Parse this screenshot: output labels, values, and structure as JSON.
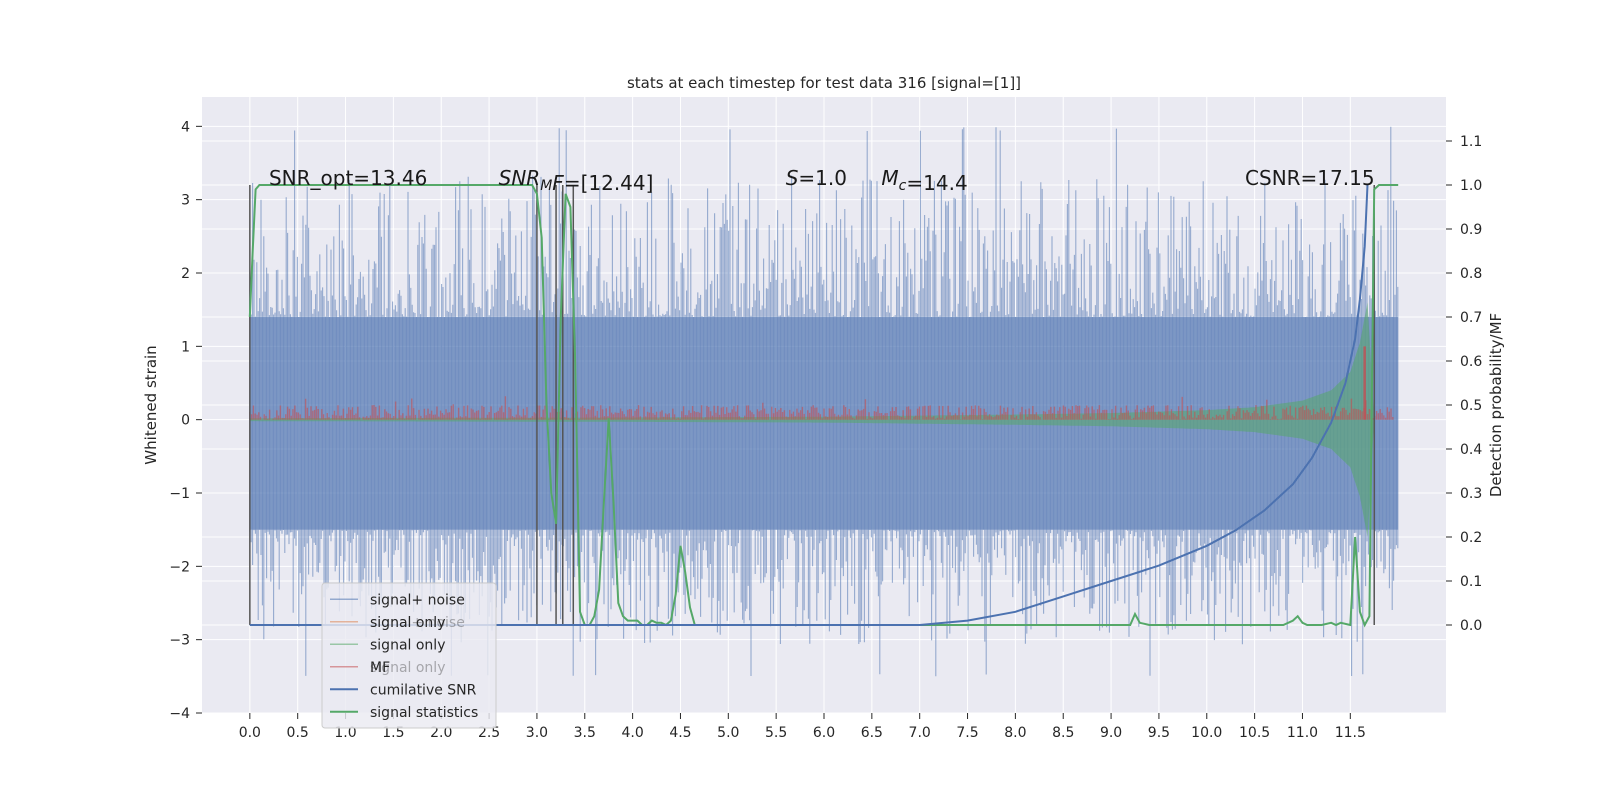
{
  "chart_data": {
    "type": "line",
    "title": "stats at each timestep for test data 316 [signal=[1]]",
    "xlabel": "",
    "ylabel_left": "Whitened strain",
    "ylabel_right": "Detection probability/MF",
    "xlim": [
      -0.5,
      12.5
    ],
    "ylim_left": [
      -4,
      4.4
    ],
    "ylim_right": [
      -0.2,
      1.2
    ],
    "x_ticks": [
      0.0,
      0.5,
      1.0,
      1.5,
      2.0,
      2.5,
      3.0,
      3.5,
      4.0,
      4.5,
      5.0,
      5.5,
      6.0,
      6.5,
      7.0,
      7.5,
      8.0,
      8.5,
      9.0,
      9.5,
      10.0,
      10.5,
      11.0,
      11.5
    ],
    "x_tick_labels": [
      "0.0",
      "0.5",
      "1.0",
      "1.5",
      "2.0",
      "2.5",
      "3.0",
      "3.5",
      "4.0",
      "4.5",
      "5.0",
      "5.5",
      "6.0",
      "6.5",
      "7.0",
      "7.5",
      "8.0",
      "8.5",
      "9.0",
      "9.5",
      "10.0",
      "10.5",
      "11.0",
      "11.5"
    ],
    "y_left_ticks": [
      -4,
      -3,
      -2,
      -1,
      0,
      1,
      2,
      3,
      4
    ],
    "y_left_tick_labels": [
      "−4",
      "−3",
      "−2",
      "−1",
      "0",
      "1",
      "2",
      "3",
      "4"
    ],
    "y_right_ticks": [
      0.0,
      0.1,
      0.2,
      0.3,
      0.4,
      0.5,
      0.6,
      0.7,
      0.8,
      0.9,
      1.0,
      1.1
    ],
    "y_right_tick_labels": [
      "0.0",
      "0.1",
      "0.2",
      "0.3",
      "0.4",
      "0.5",
      "0.6",
      "0.7",
      "0.8",
      "0.9",
      "1.0",
      "1.1"
    ],
    "grid": true,
    "legend_placement": "lower-left",
    "legend": [
      {
        "label": "signal+ noise",
        "color": "#4c72b0",
        "alpha": 0.55
      },
      {
        "label": "signal only",
        "color": "#dd8452",
        "alpha": 0.55
      },
      {
        "label": "signal only",
        "color": "#55a868",
        "alpha": 0.55
      },
      {
        "label": "MF",
        "color": "#c44e52",
        "alpha": 0.55
      },
      {
        "label": "cumilative SNR",
        "color": "#4c72b0",
        "alpha": 1
      },
      {
        "label": "signal statistics",
        "color": "#55a868",
        "alpha": 1
      }
    ],
    "legend_ghost_labels": [
      "signal+ noise",
      "signal only"
    ],
    "annotations": [
      {
        "parts": [
          {
            "t": "SNR_opt=13.46",
            "italic": false
          }
        ],
        "x": 0.2
      },
      {
        "parts": [
          {
            "t": "SNR",
            "italic": true
          },
          {
            "t": "M",
            "italic": true,
            "sub": true
          },
          {
            "t": "F",
            "italic": true
          },
          {
            "t": "=[12.44]",
            "italic": false
          }
        ],
        "x": 2.6
      },
      {
        "parts": [
          {
            "t": "S",
            "italic": true
          },
          {
            "t": "=1.0",
            "italic": false
          }
        ],
        "x": 5.6
      },
      {
        "parts": [
          {
            "t": "M",
            "italic": true
          },
          {
            "t": "c",
            "italic": true,
            "sub": true
          },
          {
            "t": "=14.4",
            "italic": false
          }
        ],
        "x": 6.6
      },
      {
        "parts": [
          {
            "t": "CSNR=17.15",
            "italic": false
          }
        ],
        "x": 10.4
      }
    ],
    "annotation_y_right": 1.0,
    "series": [
      {
        "name": "signal statistics",
        "axis": "right",
        "color": "#55a868",
        "x": [
          0.0,
          0.03,
          0.06,
          0.1,
          0.2,
          0.5,
          1.0,
          2.0,
          2.9,
          2.95,
          3.0,
          3.05,
          3.1,
          3.15,
          3.2,
          3.25,
          3.3,
          3.35,
          3.4,
          3.45,
          3.5,
          3.55,
          3.6,
          3.65,
          3.7,
          3.75,
          3.8,
          3.85,
          3.9,
          3.95,
          4.0,
          4.05,
          4.1,
          4.15,
          4.2,
          4.25,
          4.3,
          4.35,
          4.4,
          4.45,
          4.5,
          4.55,
          4.6,
          4.65,
          4.7,
          4.75,
          5.0,
          6.0,
          7.0,
          8.0,
          9.0,
          9.2,
          9.25,
          9.3,
          9.4,
          10.0,
          10.8,
          10.9,
          10.95,
          11.0,
          11.05,
          11.2,
          11.3,
          11.35,
          11.4,
          11.5,
          11.55,
          11.6,
          11.65,
          11.7,
          11.75,
          11.8,
          11.9,
          12.0
        ],
        "y": [
          0.7,
          0.85,
          0.99,
          1.0,
          1.0,
          1.0,
          1.0,
          1.0,
          1.0,
          1.0,
          0.98,
          0.88,
          0.5,
          0.3,
          0.23,
          0.7,
          0.98,
          0.95,
          0.6,
          0.03,
          0.0,
          0.0,
          0.02,
          0.08,
          0.28,
          0.47,
          0.28,
          0.05,
          0.02,
          0.01,
          0.01,
          0.01,
          0.0,
          0.0,
          0.01,
          0.005,
          0.005,
          0.0,
          0.01,
          0.07,
          0.18,
          0.12,
          0.04,
          0.0,
          0.0,
          0.0,
          0.0,
          0.0,
          0.0,
          0.0,
          0.0,
          0.0,
          0.025,
          0.005,
          0.0,
          0.0,
          0.0,
          0.01,
          0.02,
          0.005,
          0.0,
          0.0,
          0.005,
          0.0,
          0.005,
          0.0,
          0.2,
          0.03,
          0.0,
          0.02,
          0.99,
          1.0,
          1.0,
          1.0
        ]
      },
      {
        "name": "cumilative SNR",
        "axis": "right",
        "color": "#4c72b0",
        "x": [
          0.0,
          6.0,
          7.0,
          7.5,
          8.0,
          8.5,
          9.0,
          9.5,
          10.0,
          10.3,
          10.6,
          10.9,
          11.1,
          11.3,
          11.45,
          11.55,
          11.6,
          11.65,
          11.68
        ],
        "y": [
          0.0,
          0.0,
          0.0,
          0.01,
          0.03,
          0.065,
          0.1,
          0.135,
          0.18,
          0.215,
          0.26,
          0.32,
          0.38,
          0.46,
          0.55,
          0.65,
          0.74,
          0.86,
          1.0
        ]
      }
    ],
    "noise_band": {
      "name": "signal+ noise",
      "axis": "left",
      "color": "#4c72b0",
      "x_range": [
        0.0,
        12.0
      ],
      "core_y": [
        -1.5,
        1.4
      ],
      "spike_range": [
        -3.6,
        4.05
      ]
    },
    "chirp_envelope": {
      "name": "signal only",
      "axis": "left",
      "color": "#55a868",
      "x": [
        0.0,
        4.0,
        6.0,
        8.0,
        9.0,
        10.0,
        10.5,
        11.0,
        11.3,
        11.5,
        11.6,
        11.68,
        11.75
      ],
      "amplitude": [
        0.02,
        0.03,
        0.04,
        0.07,
        0.09,
        0.13,
        0.17,
        0.26,
        0.4,
        0.65,
        1.05,
        1.6,
        0.0
      ]
    },
    "mf_band": {
      "name": "MF",
      "axis": "left",
      "color": "#c44e52",
      "y_range": [
        0.0,
        0.2
      ],
      "peak_x": 11.65,
      "peak_y": 1.0
    },
    "vertical_lines": {
      "color": "#555555",
      "x": [
        0.0,
        3.0,
        3.2,
        3.27,
        3.38,
        11.75
      ],
      "y_right_top": 1.0,
      "y_right_bottom": 0.0
    }
  }
}
